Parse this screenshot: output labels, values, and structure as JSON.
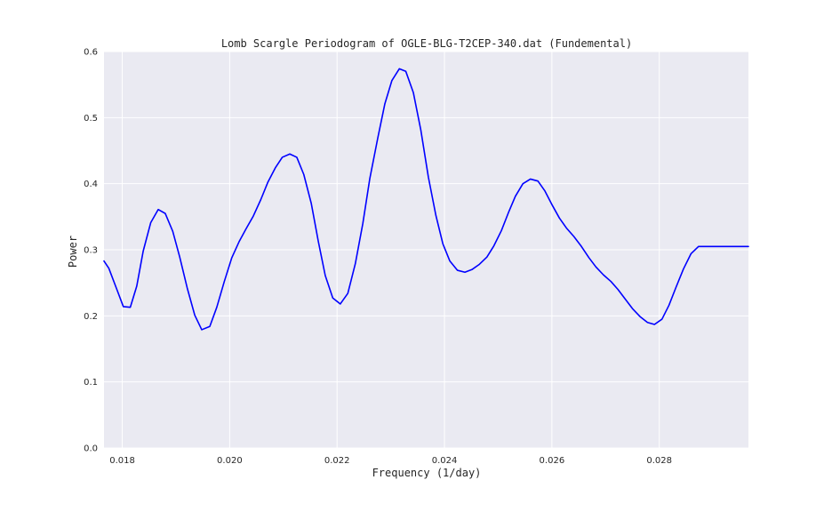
{
  "chart_data": {
    "type": "line",
    "title": "Lomb Scargle Periodogram of OGLE-BLG-T2CEP-340.dat (Fundemental)",
    "xlabel": "Frequency (1/day)",
    "ylabel": "Power",
    "xlim": [
      0.01766,
      0.02966
    ],
    "ylim": [
      0.0,
      0.6
    ],
    "x_ticks": [
      0.018,
      0.02,
      0.022,
      0.024,
      0.026,
      0.028
    ],
    "x_tick_labels": [
      "0.018",
      "0.020",
      "0.022",
      "0.024",
      "0.026",
      "0.028"
    ],
    "y_ticks": [
      0.0,
      0.1,
      0.2,
      0.3,
      0.4,
      0.5,
      0.6
    ],
    "y_tick_labels": [
      "0.0",
      "0.1",
      "0.2",
      "0.3",
      "0.4",
      "0.5",
      "0.6"
    ],
    "grid": true,
    "background": "#EAEAF2",
    "series": [
      {
        "color": "#0000FF",
        "x": [
          0.01766,
          0.01775,
          0.01789,
          0.01802,
          0.01815,
          0.01827,
          0.01839,
          0.01853,
          0.01867,
          0.0188,
          0.01894,
          0.01907,
          0.01921,
          0.01935,
          0.01948,
          0.01963,
          0.01976,
          0.0199,
          0.02004,
          0.02018,
          0.0203,
          0.02044,
          0.02058,
          0.02071,
          0.02085,
          0.02098,
          0.02112,
          0.02125,
          0.02138,
          0.02152,
          0.02165,
          0.02178,
          0.02192,
          0.02206,
          0.0222,
          0.02234,
          0.02248,
          0.02261,
          0.02276,
          0.02289,
          0.02302,
          0.02316,
          0.02328,
          0.02342,
          0.02356,
          0.0237,
          0.02384,
          0.02397,
          0.0241,
          0.02424,
          0.02438,
          0.02451,
          0.02465,
          0.02479,
          0.02492,
          0.02506,
          0.02519,
          0.02532,
          0.02546,
          0.0256,
          0.02574,
          0.02587,
          0.02601,
          0.02614,
          0.02627,
          0.02641,
          0.02655,
          0.02669,
          0.02682,
          0.02696,
          0.0271,
          0.02723,
          0.02736,
          0.0275,
          0.02764,
          0.02778,
          0.02791,
          0.02805,
          0.02818,
          0.02831,
          0.02845,
          0.02859,
          0.02873,
          0.02887,
          0.02899,
          0.02913,
          0.02926,
          0.0294,
          0.02954,
          0.02966
        ],
        "y": [
          0.283,
          0.272,
          0.242,
          0.214,
          0.213,
          0.245,
          0.298,
          0.341,
          0.361,
          0.355,
          0.328,
          0.289,
          0.242,
          0.201,
          0.179,
          0.184,
          0.213,
          0.252,
          0.288,
          0.313,
          0.331,
          0.351,
          0.376,
          0.402,
          0.424,
          0.44,
          0.445,
          0.44,
          0.414,
          0.37,
          0.313,
          0.261,
          0.227,
          0.218,
          0.234,
          0.279,
          0.34,
          0.408,
          0.47,
          0.521,
          0.556,
          0.574,
          0.57,
          0.538,
          0.481,
          0.41,
          0.352,
          0.309,
          0.283,
          0.269,
          0.266,
          0.27,
          0.278,
          0.289,
          0.306,
          0.329,
          0.356,
          0.381,
          0.4,
          0.407,
          0.404,
          0.389,
          0.367,
          0.348,
          0.333,
          0.32,
          0.305,
          0.288,
          0.274,
          0.262,
          0.252,
          0.24,
          0.226,
          0.211,
          0.199,
          0.19,
          0.187,
          0.195,
          0.216,
          0.243,
          0.271,
          0.294,
          0.305,
          0.305,
          0.305,
          0.305,
          0.305,
          0.305,
          0.305,
          0.305
        ]
      }
    ]
  }
}
